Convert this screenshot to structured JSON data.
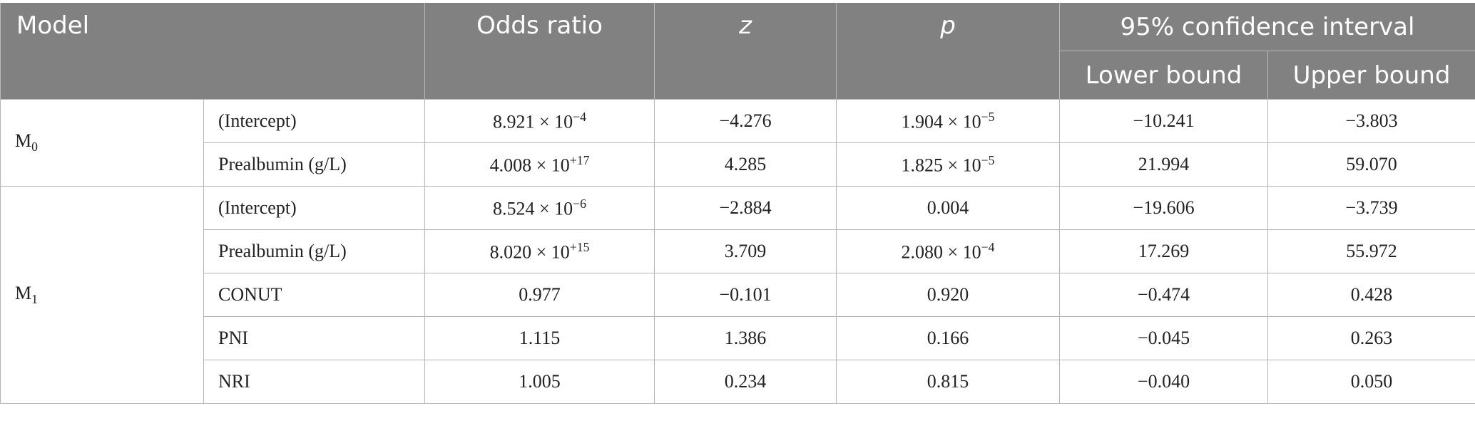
{
  "headers": {
    "model": "Model",
    "odds_ratio": "Odds ratio",
    "z": "z",
    "p": "p",
    "ci": "95% confidence interval",
    "lower": "Lower bound",
    "upper": "Upper bound"
  },
  "groups": [
    {
      "model_base": "M",
      "model_sub": "0",
      "rows": [
        {
          "term": "(Intercept)",
          "or_mant": "8.921 × 10",
          "or_exp": "−4",
          "z": "−4.276",
          "p_mant": "1.904 × 10",
          "p_exp": "−5",
          "lower": "−10.241",
          "upper": "−3.803"
        },
        {
          "term": "Prealbumin (g/L)",
          "or_mant": "4.008 × 10",
          "or_exp": "+17",
          "z": "4.285",
          "p_mant": "1.825 × 10",
          "p_exp": "−5",
          "lower": "21.994",
          "upper": "59.070"
        }
      ]
    },
    {
      "model_base": "M",
      "model_sub": "1",
      "rows": [
        {
          "term": "(Intercept)",
          "or_mant": "8.524 × 10",
          "or_exp": "−6",
          "z": "−2.884",
          "p_mant": "0.004",
          "p_exp": "",
          "lower": "−19.606",
          "upper": "−3.739"
        },
        {
          "term": "Prealbumin (g/L)",
          "or_mant": "8.020 × 10",
          "or_exp": "+15",
          "z": "3.709",
          "p_mant": "2.080 × 10",
          "p_exp": "−4",
          "lower": "17.269",
          "upper": "55.972"
        },
        {
          "term": "CONUT",
          "or_mant": "0.977",
          "or_exp": "",
          "z": "−0.101",
          "p_mant": "0.920",
          "p_exp": "",
          "lower": "−0.474",
          "upper": "0.428"
        },
        {
          "term": "PNI",
          "or_mant": "1.115",
          "or_exp": "",
          "z": "1.386",
          "p_mant": "0.166",
          "p_exp": "",
          "lower": "−0.045",
          "upper": "0.263"
        },
        {
          "term": "NRI",
          "or_mant": "1.005",
          "or_exp": "",
          "z": "0.234",
          "p_mant": "0.815",
          "p_exp": "",
          "lower": "−0.040",
          "upper": "0.050"
        }
      ]
    }
  ]
}
